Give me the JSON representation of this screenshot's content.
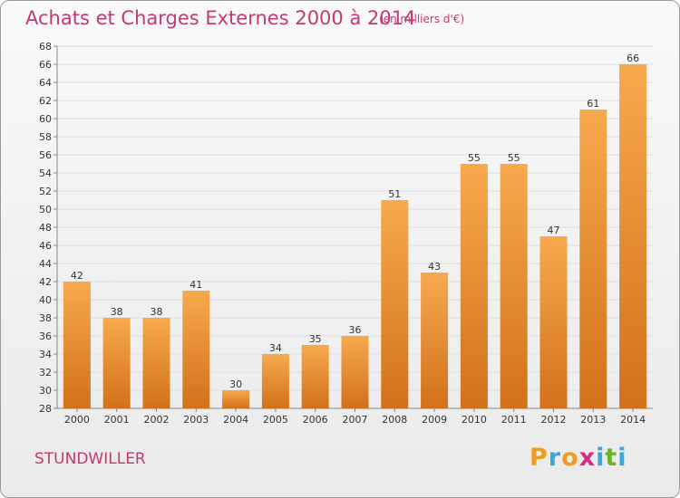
{
  "header": {
    "title": "Achats et Charges Externes 2000 à 2014",
    "subtitle": "(en milliers d'€)"
  },
  "footer": {
    "commune": "STUNDWILLER",
    "brand_letters": [
      {
        "char": "P",
        "color": "#f29c1f"
      },
      {
        "char": "r",
        "color": "#3aa7db"
      },
      {
        "char": "o",
        "color": "#f29c1f"
      },
      {
        "char": "x",
        "color": "#d42f7e"
      },
      {
        "char": "i",
        "color": "#3aa7db"
      },
      {
        "char": "t",
        "color": "#6bb42a"
      },
      {
        "char": "i",
        "color": "#3aa7db"
      }
    ]
  },
  "colors": {
    "bar_light": "#f7a94e",
    "bar_dark": "#d2711a",
    "grid": "#dddddd",
    "axis": "#888888",
    "title": "#c23a72"
  },
  "chart_data": {
    "type": "bar",
    "title": "Achats et Charges Externes 2000 à 2014",
    "subtitle": "(en milliers d'€)",
    "categories": [
      "2000",
      "2001",
      "2002",
      "2003",
      "2004",
      "2005",
      "2006",
      "2007",
      "2008",
      "2009",
      "2010",
      "2011",
      "2012",
      "2013",
      "2014"
    ],
    "values": [
      42,
      38,
      38,
      41,
      30,
      34,
      35,
      36,
      51,
      43,
      55,
      55,
      47,
      61,
      66
    ],
    "ylim": [
      28,
      68
    ],
    "yticks": [
      28,
      30,
      32,
      34,
      36,
      38,
      40,
      42,
      44,
      46,
      48,
      50,
      52,
      54,
      56,
      58,
      60,
      62,
      64,
      66,
      68
    ],
    "grid": true,
    "legend": "none",
    "data_labels": true
  }
}
